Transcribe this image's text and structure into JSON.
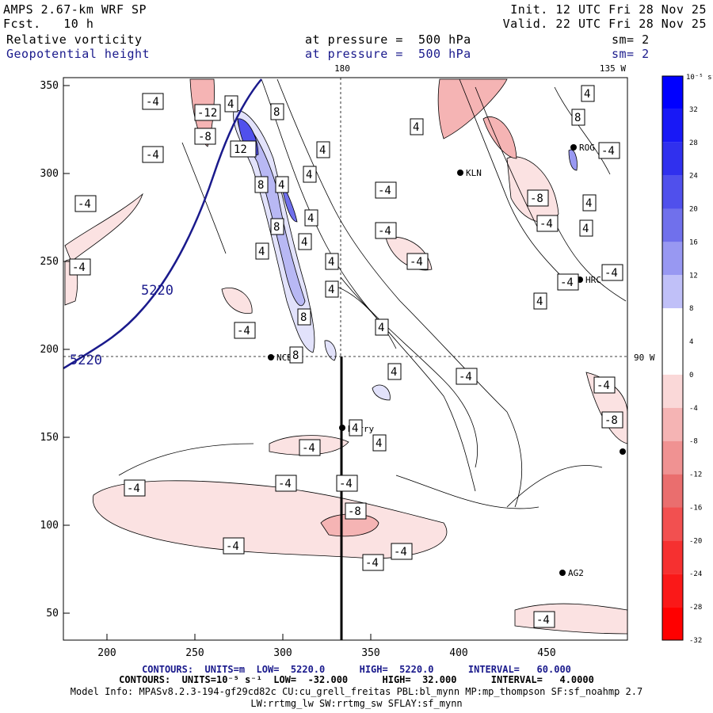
{
  "header": {
    "model": "AMPS 2.67-km WRF SP",
    "fcst": "Fcst.   10 h",
    "init": "Init. 12 UTC Fri 28 Nov 25",
    "valid": "Valid. 22 UTC Fri 28 Nov 25",
    "field1": "Relative vorticity",
    "field2": "Geopotential height",
    "pressure1": "at pressure =  500 hPa",
    "pressure2": "at pressure =  500 hPa",
    "sm1": "sm= 2",
    "sm2": "sm= 2"
  },
  "map": {
    "grid_top_label": "180",
    "corner_label": "135 W",
    "lat_label": "90 W",
    "x_ticks": [
      "200",
      "250",
      "300",
      "350",
      "400",
      "450"
    ],
    "y_ticks": [
      "350",
      "300",
      "250",
      "200",
      "150",
      "100",
      "50"
    ],
    "height_contour_label": "5220",
    "stations": [
      "KLN",
      "ROG",
      "HRC",
      "NCB",
      "Harry",
      "AG2"
    ],
    "vort_labels": [
      "-4",
      "-12",
      "-8",
      "4",
      "8",
      "12"
    ]
  },
  "colorbar": {
    "units": "10⁻⁵ s⁻¹",
    "ticks": [
      "32",
      "28",
      "24",
      "20",
      "16",
      "12",
      "8",
      "4",
      "0",
      "-4",
      "-8",
      "-12",
      "-16",
      "-20",
      "-24",
      "-28",
      "-32"
    ],
    "colors": [
      "#0000ff",
      "#1818f6",
      "#3030ee",
      "#5050ec",
      "#7070ec",
      "#9898f2",
      "#c0c0f8",
      "#ffffff",
      "#ffffff",
      "#fad8d8",
      "#f5b4b4",
      "#f09292",
      "#ea6e6e",
      "#f25050",
      "#f63030",
      "#fa1818",
      "#ff0000"
    ]
  },
  "footer": {
    "line1": "CONTOURS:  UNITS=m  LOW=  5220.0      HIGH=  5220.0      INTERVAL=   60.000",
    "line2": "CONTOURS:  UNITS=10⁻⁵ s⁻¹  LOW=  -32.000      HIGH=  32.000      INTERVAL=   4.0000",
    "line3": "Model Info: MPASv8.2.3-194-gf29cd82c CU:cu_grell_freitas PBL:bl_mynn MP:mp_thompson SF:sf_noahmp 2.7",
    "line4": "LW:rrtmg_lw SW:rrtmg_sw SFLAY:sf_mynn"
  }
}
